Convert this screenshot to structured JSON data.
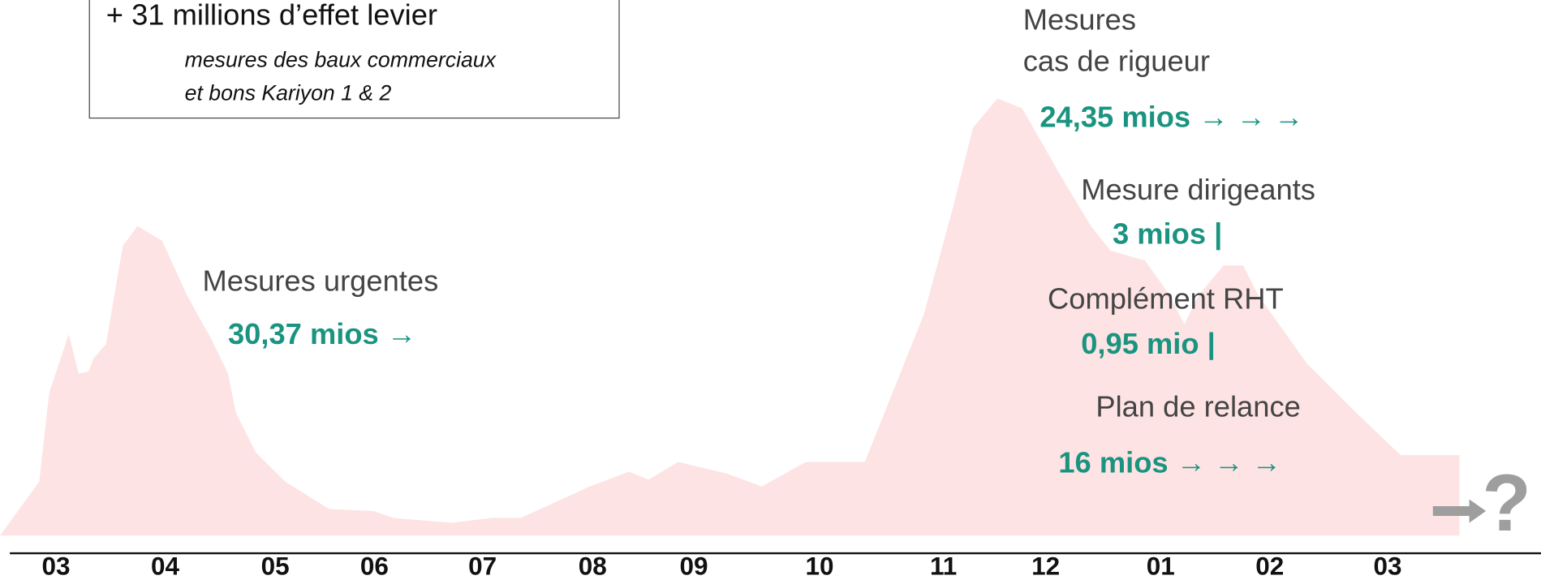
{
  "box": {
    "title": "+ 31 millions d’effet levier",
    "lines": [
      "mesures des baux commerciaux",
      "et bons Kariyon 1 & 2"
    ]
  },
  "measures": [
    {
      "label": [
        "Mesures urgentes"
      ],
      "amount": "30,37 mios →"
    },
    {
      "label": [
        "Mesures",
        "cas de rigueur"
      ],
      "amount": "24,35 mios → → →"
    },
    {
      "label": [
        "Mesure dirigeants"
      ],
      "amount": "3 mios |"
    },
    {
      "label": [
        "Complément RHT"
      ],
      "amount": "0,95 mio |"
    },
    {
      "label": [
        "Plan de relance"
      ],
      "amount": "16 mios → → →"
    }
  ],
  "months": [
    "03",
    "04",
    "05",
    "06",
    "07",
    "08",
    "09",
    "10",
    "11",
    "12",
    "01",
    "02",
    "03"
  ],
  "future": "?"
}
